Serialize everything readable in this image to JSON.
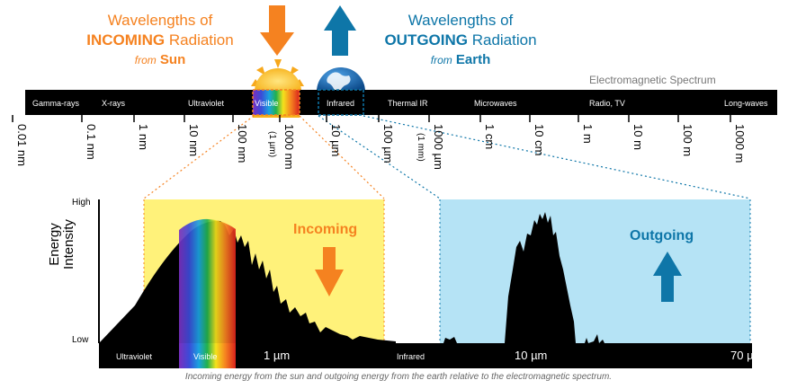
{
  "header": {
    "incoming": {
      "line1": "Wavelengths of",
      "bold": "INCOMING",
      "rest": " Radiation",
      "from": "from",
      "source": "Sun",
      "color": "#F58220"
    },
    "outgoing": {
      "line1": "Wavelengths of",
      "bold": "OUTGOING",
      "rest": " Radiation",
      "from": "from",
      "source": "Earth",
      "color": "#0E76A8"
    },
    "spectrum_title": "Electromagnetic Spectrum"
  },
  "spectrum": {
    "bands": [
      "Gamma-rays",
      "X-rays",
      "Ultraviolet",
      "Visible",
      "Infrared",
      "Thermal IR",
      "Microwaves",
      "Radio, TV",
      "Long-waves"
    ],
    "ticks": [
      "0.01 nm",
      "0.1 nm",
      "1 nm",
      "10 nm",
      "100 nm",
      "1000 nm",
      "(1 µm)",
      "10 µm",
      "100 µm",
      "1000 µm",
      "(1 mm)",
      "1 cm",
      "10 cm",
      "1 m",
      "10 m",
      "100 m",
      "1000 m"
    ]
  },
  "detail": {
    "y_high": "High",
    "y_low": "Low",
    "y_label_1": "Energy",
    "y_label_2": "Intensity",
    "incoming_label": "Incoming",
    "outgoing_label": "Outgoing",
    "axis_labels": [
      "Ultraviolet",
      "Visible",
      "1 µm",
      "Infrared",
      "10 µm",
      "70 µm"
    ]
  },
  "caption": "Incoming energy from the sun and outgoing energy from the earth relative to the electromagnetic spectrum.",
  "colors": {
    "orange": "#F58220",
    "blue": "#0E76A8",
    "yellow_panel": "#FFF27A",
    "blue_panel": "#B5E3F5"
  }
}
